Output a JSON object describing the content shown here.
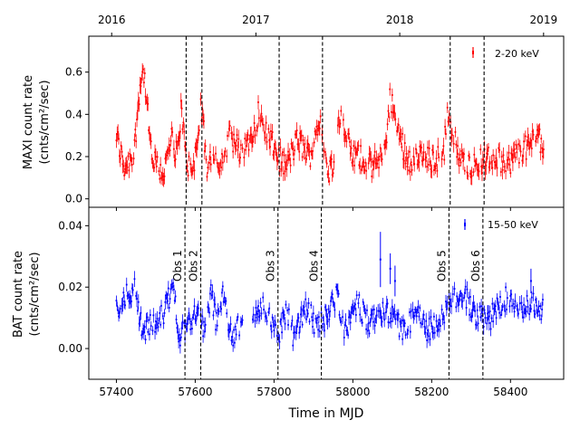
{
  "chart_data": [
    {
      "type": "scatter",
      "panel": "top",
      "ylabel_line1": "MAXI count rate",
      "ylabel_line2": "(cnts/cm²/sec)",
      "ylim": [
        -0.04,
        0.77
      ],
      "yticks": [
        0.0,
        0.2,
        0.4,
        0.6
      ],
      "ytick_labels": [
        "0.0",
        "0.2",
        "0.4",
        "0.6"
      ],
      "xlim": [
        57330,
        58535
      ],
      "top_axis_ticks": [
        57388,
        57754,
        58119,
        58484
      ],
      "top_axis_labels": [
        "2016",
        "2017",
        "2018",
        "2019"
      ],
      "series": [
        {
          "name": "2-20 keV",
          "color": "#ff0000",
          "x_range": [
            57400,
            58485
          ],
          "anchors_x": [
            57400,
            57420,
            57445,
            57460,
            57470,
            57490,
            57520,
            57540,
            57555,
            57565,
            57575,
            57590,
            57605,
            57615,
            57630,
            57645,
            57665,
            57690,
            57720,
            57760,
            57790,
            57810,
            57830,
            57860,
            57890,
            57920,
            57935,
            57950,
            57965,
            57980,
            58000,
            58020,
            58040,
            58080,
            58095,
            58110,
            58140,
            58170,
            58200,
            58230,
            58240,
            58270,
            58300,
            58330,
            58360,
            58390,
            58420,
            58450,
            58470,
            58485
          ],
          "anchors_y": [
            0.3,
            0.15,
            0.22,
            0.55,
            0.6,
            0.18,
            0.12,
            0.28,
            0.2,
            0.45,
            0.2,
            0.12,
            0.25,
            0.45,
            0.15,
            0.22,
            0.18,
            0.3,
            0.2,
            0.4,
            0.28,
            0.2,
            0.15,
            0.28,
            0.2,
            0.4,
            0.1,
            0.18,
            0.4,
            0.3,
            0.2,
            0.2,
            0.15,
            0.2,
            0.5,
            0.35,
            0.18,
            0.2,
            0.18,
            0.2,
            0.42,
            0.18,
            0.16,
            0.18,
            0.2,
            0.16,
            0.22,
            0.25,
            0.32,
            0.22
          ],
          "sample_spacing_days": 2,
          "approx_error": 0.03
        }
      ]
    },
    {
      "type": "scatter",
      "panel": "bottom",
      "ylabel_line1": "BAT count rate",
      "ylabel_line2": "(cnts/cm²/sec)",
      "ylim": [
        -0.01,
        0.046
      ],
      "yticks": [
        0.0,
        0.02,
        0.04
      ],
      "ytick_labels": [
        "0.00",
        "0.02",
        "0.04"
      ],
      "xlim": [
        57330,
        58535
      ],
      "xticks": [
        57400,
        57600,
        57800,
        58000,
        58200,
        58400
      ],
      "xtick_labels": [
        "57400",
        "57600",
        "57800",
        "58000",
        "58200",
        "58400"
      ],
      "xlabel": "Time in MJD",
      "series": [
        {
          "name": "15-50 keV",
          "color": "#0000ff",
          "x_range": [
            57400,
            58485
          ],
          "anchors_x": [
            57400,
            57425,
            57450,
            57465,
            57490,
            57520,
            57545,
            57560,
            57580,
            57600,
            57625,
            57640,
            57655,
            57670,
            57690,
            57720,
            57740,
            57770,
            57790,
            57810,
            57830,
            57850,
            57880,
            57910,
            57940,
            57960,
            57980,
            58010,
            58040,
            58070,
            58100,
            58130,
            58160,
            58190,
            58220,
            58250,
            58280,
            58310,
            58340,
            58370,
            58400,
            58430,
            58460,
            58485
          ],
          "anchors_y": [
            0.012,
            0.018,
            0.02,
            0.005,
            0.008,
            0.012,
            0.02,
            0.004,
            0.008,
            0.012,
            0.005,
            0.018,
            0.008,
            0.02,
            0.004,
            0.008,
            0.006,
            0.015,
            0.01,
            0.004,
            0.012,
            0.004,
            0.014,
            0.006,
            0.012,
            0.018,
            0.005,
            0.015,
            0.008,
            0.012,
            0.01,
            0.005,
            0.012,
            0.006,
            0.008,
            0.015,
            0.018,
            0.012,
            0.008,
            0.014,
            0.018,
            0.012,
            0.015,
            0.012
          ],
          "outliers": [
            {
              "x": 58070,
              "y": 0.029,
              "err": 0.009
            },
            {
              "x": 58095,
              "y": 0.026,
              "err": 0.005
            },
            {
              "x": 58107,
              "y": 0.022,
              "err": 0.005
            },
            {
              "x": 58452,
              "y": 0.022,
              "err": 0.004
            }
          ],
          "sample_spacing_days": 2,
          "approx_error": 0.0018
        }
      ]
    }
  ],
  "observations": [
    {
      "label": "Obs 1",
      "top_x": 57577,
      "bottom_x": 57574
    },
    {
      "label": "Obs 2",
      "top_x": 57617,
      "bottom_x": 57614
    },
    {
      "label": "Obs 3",
      "top_x": 57813,
      "bottom_x": 57810
    },
    {
      "label": "Obs 4",
      "top_x": 57923,
      "bottom_x": 57920
    },
    {
      "label": "Obs 5",
      "top_x": 58247,
      "bottom_x": 58244
    },
    {
      "label": "Obs 6",
      "top_x": 58333,
      "bottom_x": 58330
    }
  ]
}
